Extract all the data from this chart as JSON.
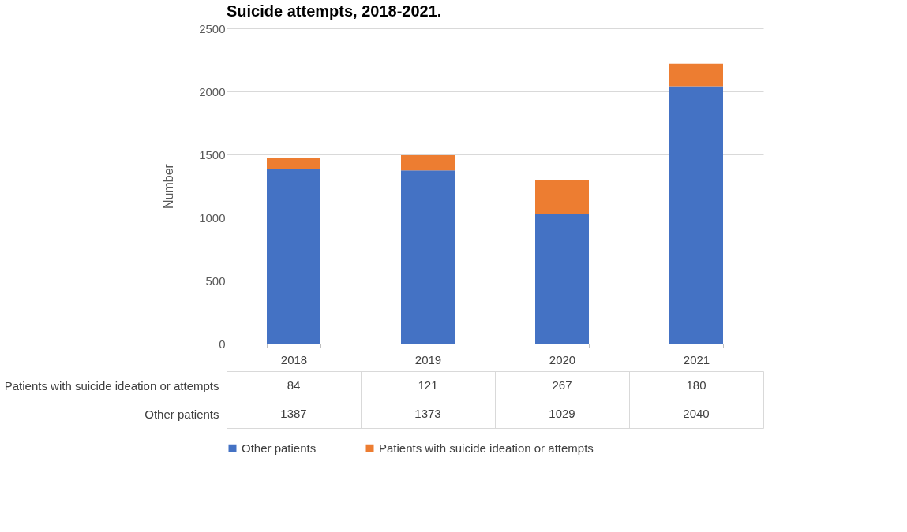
{
  "chart_data": {
    "type": "bar",
    "title": "Suicide attempts, 2018-2021.",
    "ylabel": "Number",
    "categories": [
      "2018",
      "2019",
      "2020",
      "2021"
    ],
    "stacked": true,
    "data_labels": true,
    "legend": "bottom",
    "grid": "y",
    "ylim": [
      0,
      2500
    ],
    "yticks": [
      0,
      500,
      1000,
      1500,
      2000,
      2500
    ],
    "series": [
      {
        "name": "Other patients",
        "color": "#4472c4",
        "values": [
          1387,
          1373,
          1029,
          2040
        ]
      },
      {
        "name": "Patients with suicide ideation or attempts",
        "color": "#ed7d31",
        "values": [
          84,
          121,
          267,
          180
        ]
      }
    ]
  }
}
